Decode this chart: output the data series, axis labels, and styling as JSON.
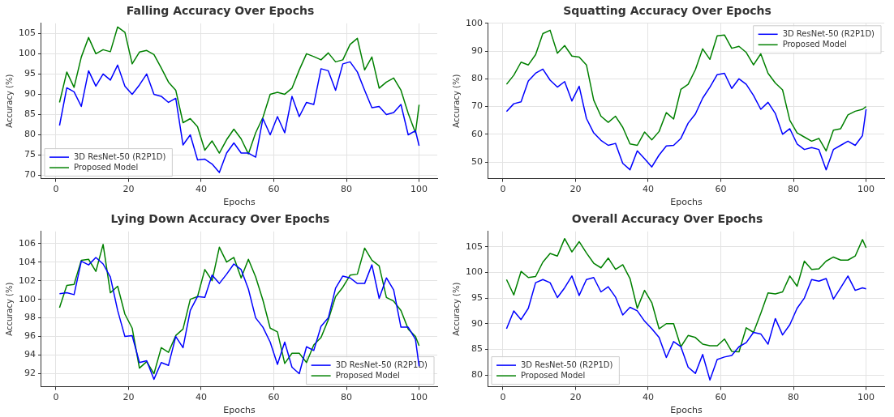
{
  "chart_data": [
    {
      "type": "line",
      "title": "Falling Accuracy Over Epochs",
      "xlabel": "Epochs",
      "ylabel": "Accuracy (%)",
      "x": [
        1,
        3,
        5,
        7,
        9,
        11,
        13,
        15,
        17,
        19,
        21,
        23,
        25,
        27,
        29,
        31,
        33,
        35,
        37,
        39,
        41,
        43,
        45,
        47,
        49,
        51,
        53,
        55,
        57,
        59,
        61,
        63,
        65,
        67,
        69,
        71,
        73,
        75,
        77,
        79,
        81,
        83,
        85,
        87,
        89,
        91,
        93,
        95,
        97,
        99,
        100
      ],
      "xlim": [
        -4,
        105
      ],
      "xticks": [
        0,
        20,
        40,
        60,
        80,
        100
      ],
      "ylim": [
        69.2,
        107.5
      ],
      "yticks": [
        70,
        75,
        80,
        85,
        90,
        95,
        100,
        105
      ],
      "grid": true,
      "legend": "bottom left",
      "series": [
        {
          "name": "3D ResNet-50 (R2P1D)",
          "color": "#0000ff",
          "values": [
            82.3,
            91.6,
            90.6,
            87,
            95.8,
            92,
            95,
            93.5,
            97.2,
            92,
            90,
            92.3,
            95,
            90,
            89.5,
            88,
            89,
            77.5,
            80,
            73.8,
            74,
            72.8,
            70.7,
            75.5,
            78,
            75.5,
            75.5,
            74.5,
            84,
            80,
            84.5,
            80.5,
            89.5,
            84.5,
            88,
            87.5,
            96.3,
            95.8,
            91,
            97.5,
            98,
            95.5,
            91,
            86.7,
            87,
            85,
            85.5,
            87.5,
            80,
            81,
            77.3
          ]
        },
        {
          "name": "Proposed Model",
          "color": "#008000",
          "values": [
            88,
            95.5,
            91.7,
            99.2,
            104,
            100,
            101,
            100.5,
            106.6,
            105.3,
            97.5,
            100.4,
            100.8,
            99.8,
            96.5,
            93,
            91,
            83,
            84,
            82,
            76.2,
            78.5,
            75.5,
            78.8,
            81.4,
            79,
            75.3,
            80.5,
            84.3,
            90,
            90.5,
            90,
            91.5,
            96,
            100,
            99.3,
            98.5,
            100.2,
            98,
            98.5,
            102.3,
            103.8,
            96,
            99.2,
            91.5,
            93,
            94,
            91,
            85.3,
            80.5,
            87.4
          ]
        }
      ]
    },
    {
      "type": "line",
      "title": "Squatting Accuracy Over Epochs",
      "xlabel": "Epochs",
      "ylabel": "Accuracy (%)",
      "x": [
        1,
        3,
        5,
        7,
        9,
        11,
        13,
        15,
        17,
        19,
        21,
        23,
        25,
        27,
        29,
        31,
        33,
        35,
        37,
        39,
        41,
        43,
        45,
        47,
        49,
        51,
        53,
        55,
        57,
        59,
        61,
        63,
        65,
        67,
        69,
        71,
        73,
        75,
        77,
        79,
        81,
        83,
        85,
        87,
        89,
        91,
        93,
        95,
        97,
        99,
        100
      ],
      "xlim": [
        -4,
        105
      ],
      "xticks": [
        0,
        20,
        40,
        60,
        80,
        100
      ],
      "ylim": [
        44,
        100
      ],
      "yticks": [
        50,
        60,
        70,
        80,
        90,
        100
      ],
      "grid": true,
      "legend": "top right",
      "series": [
        {
          "name": "3D ResNet-50 (R2P1D)",
          "color": "#0000ff",
          "values": [
            68.2,
            71,
            71.7,
            79.2,
            82,
            83.5,
            79.5,
            77,
            79,
            72,
            77.3,
            65.7,
            60.5,
            57.8,
            56,
            56.7,
            49.5,
            47.2,
            54,
            51.2,
            48.2,
            52.5,
            55.8,
            56,
            58.5,
            64,
            67.3,
            73,
            77,
            81.5,
            82,
            76.5,
            80,
            78,
            74,
            69,
            71.5,
            67.5,
            60,
            62,
            56.5,
            54.5,
            55.2,
            54.5,
            47.2,
            54.5,
            56,
            57.5,
            56,
            59.5,
            69
          ]
        },
        {
          "name": "Proposed Model",
          "color": "#008000",
          "values": [
            78,
            81.3,
            86,
            85,
            88.7,
            96.3,
            97.5,
            89.2,
            92,
            88.2,
            87.8,
            85,
            72.3,
            66.5,
            64.3,
            66.5,
            62.5,
            56.5,
            56,
            60.8,
            58,
            61,
            67.8,
            65.5,
            76.2,
            78,
            83.3,
            90.8,
            87,
            95.5,
            95.8,
            91,
            91.7,
            89.5,
            85,
            89,
            82,
            78.5,
            76,
            65,
            60.5,
            59,
            57.5,
            58.5,
            54,
            61.5,
            62,
            67,
            68.3,
            69,
            70
          ]
        }
      ]
    },
    {
      "type": "line",
      "title": "Lying Down Accuracy Over Epochs",
      "xlabel": "Epochs",
      "ylabel": "Accuracy (%)",
      "x": [
        1,
        3,
        5,
        7,
        9,
        11,
        13,
        15,
        17,
        19,
        21,
        23,
        25,
        27,
        29,
        31,
        33,
        35,
        37,
        39,
        41,
        43,
        45,
        47,
        49,
        51,
        53,
        55,
        57,
        59,
        61,
        63,
        65,
        67,
        69,
        71,
        73,
        75,
        77,
        79,
        81,
        83,
        85,
        87,
        89,
        91,
        93,
        95,
        97,
        99,
        100
      ],
      "xlim": [
        -4,
        105
      ],
      "xticks": [
        0,
        20,
        40,
        60,
        80,
        100
      ],
      "ylim": [
        90.6,
        107.3
      ],
      "yticks": [
        92,
        94,
        96,
        98,
        100,
        102,
        104,
        106
      ],
      "grid": true,
      "legend": "bottom right",
      "series": [
        {
          "name": "3D ResNet-50 (R2P1D)",
          "color": "#0000ff",
          "values": [
            100.6,
            100.7,
            100.5,
            104.1,
            103.7,
            104.5,
            103.8,
            102.4,
            98.8,
            96,
            96.1,
            93.2,
            93.4,
            91.4,
            93.2,
            92.9,
            96,
            94.8,
            98.8,
            100.3,
            100.2,
            102.6,
            101.7,
            102.7,
            103.8,
            103.2,
            101.1,
            98,
            97,
            95.4,
            93,
            95.4,
            92.7,
            92,
            94.9,
            94.5,
            97.1,
            98,
            101.2,
            102.5,
            102.3,
            101.7,
            101.7,
            103.7,
            100.1,
            102.3,
            101,
            97,
            97,
            95.7,
            92.8
          ]
        },
        {
          "name": "Proposed Model",
          "color": "#008000",
          "values": [
            99.1,
            101.5,
            101.6,
            104.2,
            104.3,
            103,
            105.9,
            100.7,
            101.4,
            98.4,
            96.9,
            92.6,
            93.3,
            92,
            94.8,
            94.3,
            96.1,
            96.8,
            100,
            100.3,
            103.2,
            102,
            105.6,
            104,
            104.5,
            102.3,
            104.3,
            102.4,
            99.9,
            96.9,
            96.5,
            93.1,
            94.2,
            94.2,
            93.2,
            95.1,
            95.9,
            97.8,
            100.3,
            101.3,
            102.6,
            102.7,
            105.5,
            104.2,
            103.6,
            100.2,
            99.8,
            98.8,
            96.8,
            96,
            95
          ]
        }
      ]
    },
    {
      "type": "line",
      "title": "Overall Accuracy Over Epochs",
      "xlabel": "Epochs",
      "ylabel": "Accuracy (%)",
      "x": [
        1,
        3,
        5,
        7,
        9,
        11,
        13,
        15,
        17,
        19,
        21,
        23,
        25,
        27,
        29,
        31,
        33,
        35,
        37,
        39,
        41,
        43,
        45,
        47,
        49,
        51,
        53,
        55,
        57,
        59,
        61,
        63,
        65,
        67,
        69,
        71,
        73,
        75,
        77,
        79,
        81,
        83,
        85,
        87,
        89,
        91,
        93,
        95,
        97,
        99,
        100
      ],
      "xlim": [
        -4,
        105
      ],
      "xticks": [
        0,
        20,
        40,
        60,
        80,
        100
      ],
      "ylim": [
        77.7,
        108
      ],
      "yticks": [
        80,
        85,
        90,
        95,
        100,
        105
      ],
      "grid": true,
      "legend": "bottom left",
      "series": [
        {
          "name": "3D ResNet-50 (R2P1D)",
          "color": "#0000ff",
          "values": [
            89,
            92.5,
            90.8,
            93,
            98,
            98.6,
            98,
            95.1,
            97,
            99.3,
            95.5,
            98.6,
            99,
            96.2,
            97.2,
            95.2,
            91.7,
            93.2,
            92.5,
            90.5,
            89,
            87.3,
            83.4,
            86.5,
            85.5,
            81.5,
            80.3,
            84,
            79,
            83,
            83.5,
            83.8,
            85.5,
            86.3,
            88.3,
            88,
            86,
            91,
            87.8,
            89.8,
            93,
            95,
            98.6,
            98.3,
            98.8,
            94.8,
            97,
            99.3,
            96.5,
            97,
            96.8
          ]
        },
        {
          "name": "Proposed Model",
          "color": "#008000",
          "values": [
            98.6,
            95.6,
            100.2,
            99,
            99.2,
            102,
            103.7,
            103.2,
            106.6,
            104,
            106,
            103.8,
            101.8,
            100.9,
            102.8,
            100.6,
            101.5,
            98.8,
            93,
            96.5,
            94.1,
            89,
            90,
            90,
            85.5,
            87.7,
            87.3,
            86,
            85.7,
            85.7,
            87,
            84.6,
            84.5,
            89.2,
            88.3,
            92,
            96,
            95.8,
            96.2,
            99.3,
            97.3,
            102.2,
            100.6,
            100.7,
            102.2,
            103,
            102.4,
            102.4,
            103.2,
            106.4,
            104.8
          ]
        }
      ]
    }
  ]
}
